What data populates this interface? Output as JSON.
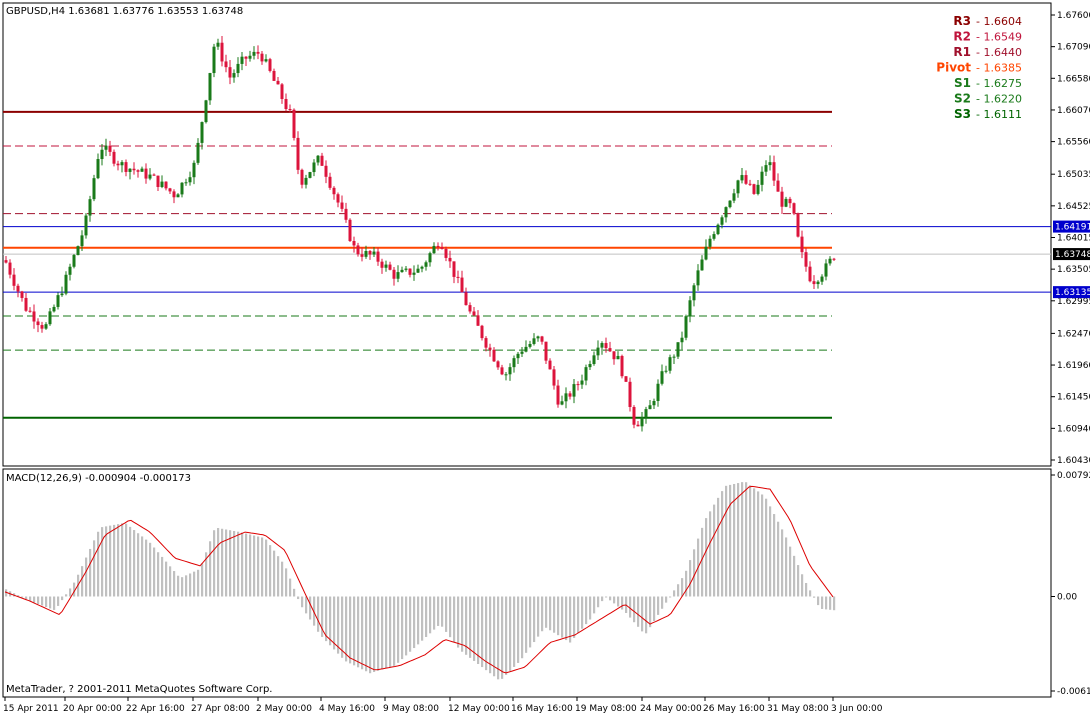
{
  "header": {
    "symbol_label": "GBPUSD,H4  1.63681 1.63776 1.63553 1.63748"
  },
  "pivots": [
    {
      "label": "R3",
      "value": "1.6604",
      "price": 1.6604,
      "color": "#8b0000",
      "style": "solid"
    },
    {
      "label": "R2",
      "value": "1.6549",
      "price": 1.6549,
      "color": "#c0143c",
      "style": "dashed"
    },
    {
      "label": "R1",
      "value": "1.6440",
      "price": 1.644,
      "color": "#a0102c",
      "style": "dashed"
    },
    {
      "label": "Pivot",
      "value": "1.6385",
      "price": 1.6385,
      "color": "#ff4500",
      "style": "solid"
    },
    {
      "label": "S1",
      "value": "1.6275",
      "price": 1.6275,
      "color": "#1a7a1a",
      "style": "dashed"
    },
    {
      "label": "S2",
      "value": "1.6220",
      "price": 1.622,
      "color": "#1a7a1a",
      "style": "dashed"
    },
    {
      "label": "S3",
      "value": "1.6111",
      "price": 1.6111,
      "color": "#006400",
      "style": "solid"
    }
  ],
  "hlines": [
    {
      "price": 1.64191,
      "label": "1.64191",
      "color": "#0000cd"
    },
    {
      "price": 1.63135,
      "label": "1.63135",
      "color": "#0000cd"
    }
  ],
  "current_price": {
    "price": 1.63748,
    "label": "1.63748"
  },
  "price_axis": {
    "min": 1.6043,
    "max": 1.676,
    "labels": [
      "1.67600",
      "1.67090",
      "1.66580",
      "1.66070",
      "1.65560",
      "1.65035",
      "1.64525",
      "1.64015",
      "1.63505",
      "1.62995",
      "1.62470",
      "1.61960",
      "1.61450",
      "1.60940",
      "1.60430"
    ]
  },
  "macd": {
    "label": "MACD(12,26,9) -0.000904 -0.000173",
    "axis_labels": [
      "0.00792",
      "0.00",
      "-0.00616"
    ],
    "max": 0.00792,
    "min": -0.00616
  },
  "time_axis": {
    "labels": [
      "15 Apr 2011",
      "20 Apr 00:00",
      "22 Apr 16:00",
      "27 Apr 08:00",
      "2 May 00:00",
      "4 May 16:00",
      "9 May 08:00",
      "12 May 00:00",
      "16 May 16:00",
      "19 May 08:00",
      "24 May 00:00",
      "26 May 16:00",
      "31 May 08:00",
      "3 Jun 00:00"
    ]
  },
  "copyright": "MetaTrader, ? 2001-2011 MetaQuotes Software Corp.",
  "colors": {
    "bull": "#1a7a1a",
    "bear": "#dc143c",
    "histogram": "#c0c0c0",
    "signal": "#dd0000"
  }
}
